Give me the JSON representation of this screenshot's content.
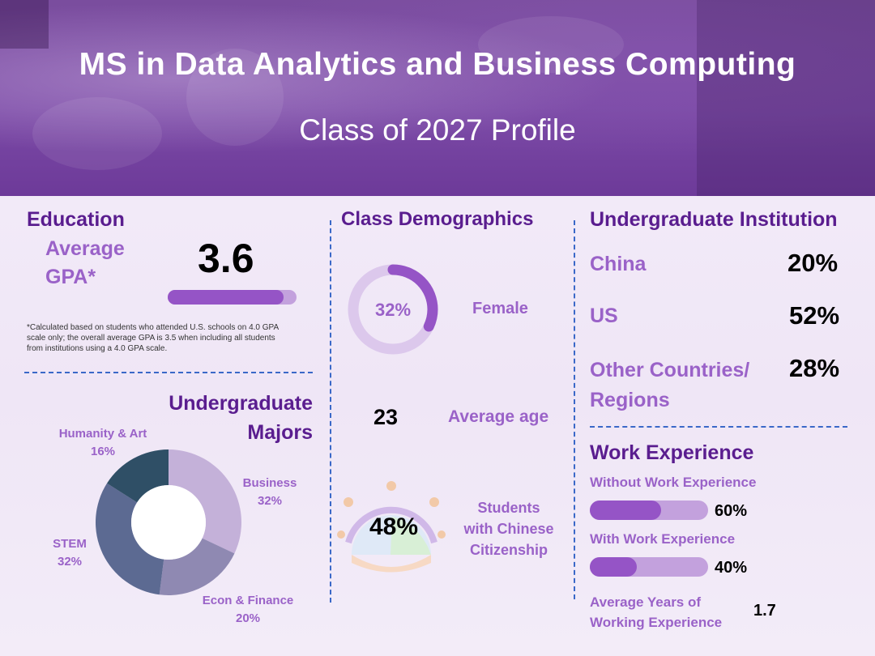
{
  "header": {
    "title": "MS in Data Analytics and Business Computing",
    "subtitle": "Class of 2027 Profile"
  },
  "education": {
    "heading": "Education",
    "gpa_label_line1": "Average",
    "gpa_label_line2": "GPA*",
    "gpa_value": "3.6",
    "gpa_fraction": 0.9,
    "footnote_line1": "*Calculated based on students who attended U.S. schools on 4.0 GPA",
    "footnote_line2": "scale only; the overall average GPA is 3.5 when including all students",
    "footnote_line3": "from institutions using a 4.0 GPA scale."
  },
  "majors": {
    "heading_line1": "Undergraduate",
    "heading_line2": "Majors",
    "segments": [
      {
        "name": "Business",
        "value": 32,
        "label": "32%",
        "color": "#c4b1d9"
      },
      {
        "name": "Econ & Finance",
        "value": 20,
        "label": "20%",
        "color": "#8f89b2"
      },
      {
        "name": "STEM",
        "value": 32,
        "label": "32%",
        "color": "#5c6a92"
      },
      {
        "name": "Humanity & Art",
        "value": 16,
        "label": "16%",
        "color": "#2f4f66"
      }
    ]
  },
  "demographics": {
    "heading": "Class Demographics",
    "female_pct": "32%",
    "female_value": 32,
    "female_label": "Female",
    "age_value": "23",
    "age_label": "Average age",
    "citizenship_pct": "48%",
    "citizenship_label_line1": "Students",
    "citizenship_label_line2": "with Chinese",
    "citizenship_label_line3": "Citizenship"
  },
  "institution": {
    "heading": "Undergraduate Institution",
    "rows": [
      {
        "label": "China",
        "value": "20%"
      },
      {
        "label": "US",
        "value": "52%"
      },
      {
        "label_line1": "Other Countries/",
        "label_line2": "Regions",
        "value": "28%"
      }
    ]
  },
  "work": {
    "heading": "Work Experience",
    "without_label": "Without Work Experience",
    "without_value": "60%",
    "without_fraction": 0.6,
    "with_label": "With Work Experience",
    "with_value": "40%",
    "with_fraction": 0.4,
    "years_label_line1": "Average Years of",
    "years_label_line2": "Working Experience",
    "years_value": "1.7"
  },
  "colors": {
    "heading_purple": "#5a1d8f",
    "lavender": "#9a62c8",
    "divider_blue": "#3a68c8",
    "bar_fill": "#9554c6",
    "bar_track": "#c3a1dd"
  }
}
